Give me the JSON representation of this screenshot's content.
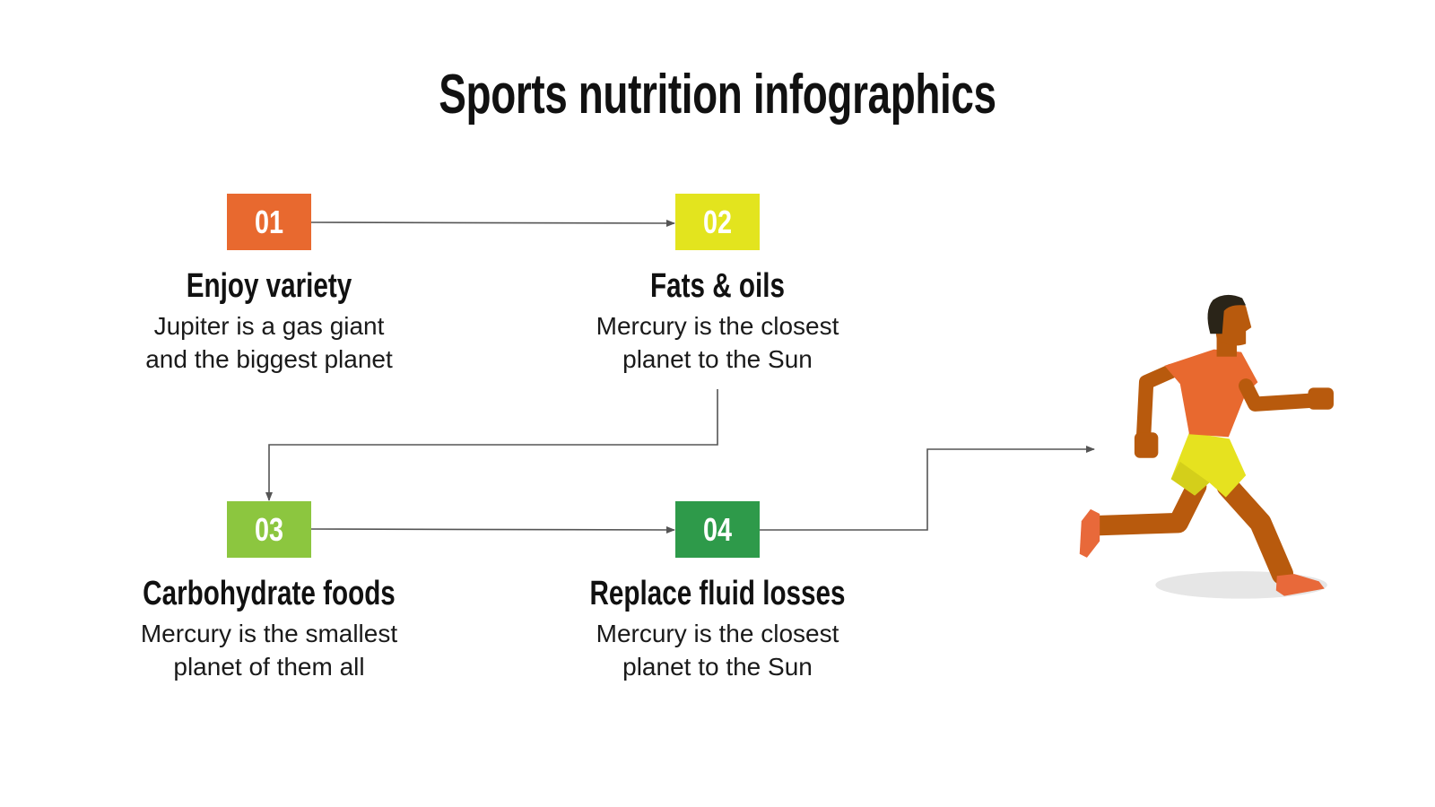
{
  "title": "Sports nutrition infographics",
  "colors": {
    "step1": "#e8692f",
    "step2": "#e3e41e",
    "step3": "#8cc63f",
    "step4": "#2e9a4a",
    "connector": "#555555",
    "skin": "#b85a0d",
    "shirt": "#e8692f",
    "shorts": "#e6e21f",
    "hair": "#2a2418",
    "shoe": "#e8693a"
  },
  "steps": [
    {
      "number": "01",
      "heading": "Enjoy variety",
      "desc_line1": "Jupiter is a gas giant",
      "desc_line2": "and the biggest planet"
    },
    {
      "number": "02",
      "heading": "Fats & oils",
      "desc_line1": "Mercury is the closest",
      "desc_line2": "planet to the Sun"
    },
    {
      "number": "03",
      "heading": "Carbohydrate foods",
      "desc_line1": "Mercury is the smallest",
      "desc_line2": "planet of them all"
    },
    {
      "number": "04",
      "heading": "Replace fluid losses",
      "desc_line1": "Mercury is the closest",
      "desc_line2": "planet to the Sun"
    }
  ],
  "illustration": {
    "icon": "runner-illustration"
  }
}
